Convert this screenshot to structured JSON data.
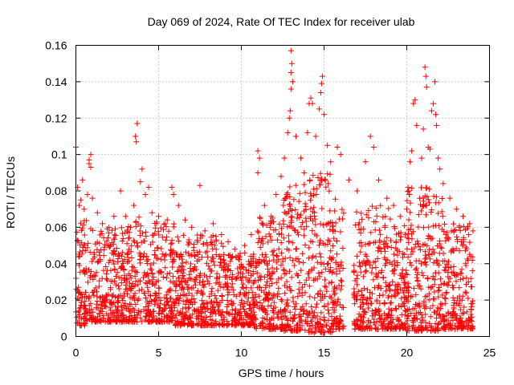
{
  "chart_data": {
    "type": "scatter",
    "title": "Day 069 of 2024, Rate Of TEC Index for receiver ulab",
    "xlabel": "GPS time / hours",
    "ylabel": "ROTI / TECUs",
    "xlim": [
      0,
      25
    ],
    "ylim": [
      0,
      0.16
    ],
    "xticks": [
      0,
      5,
      10,
      15,
      20,
      25
    ],
    "xtick_labels": [
      "0",
      "5",
      "10",
      "15",
      "20",
      "25"
    ],
    "yticks": [
      0,
      0.02,
      0.04,
      0.06,
      0.08,
      0.1,
      0.12,
      0.14,
      0.16
    ],
    "ytick_labels": [
      "0",
      "0.02",
      "0.04",
      "0.06",
      "0.08",
      "0.1",
      "0.12",
      "0.14",
      "0.16"
    ],
    "grid": true,
    "marker": "plus",
    "marker_color": "#ff0000",
    "series": [
      {
        "name": "ROTI",
        "points": [
          [
            0.0,
            0.104
          ],
          [
            0.1,
            0.082
          ],
          [
            0.2,
            0.072
          ],
          [
            0.3,
            0.075
          ],
          [
            0.4,
            0.086
          ],
          [
            0.5,
            0.07
          ],
          [
            0.8,
            0.097
          ],
          [
            0.8,
            0.095
          ],
          [
            0.9,
            0.1
          ],
          [
            0.9,
            0.093
          ],
          [
            0.7,
            0.078
          ],
          [
            1.0,
            0.076
          ],
          [
            1.3,
            0.068
          ],
          [
            1.6,
            0.062
          ],
          [
            2.0,
            0.06
          ],
          [
            2.3,
            0.066
          ],
          [
            2.7,
            0.08
          ],
          [
            3.0,
            0.066
          ],
          [
            3.3,
            0.06
          ],
          [
            3.5,
            0.072
          ],
          [
            3.7,
            0.117
          ],
          [
            3.6,
            0.11
          ],
          [
            3.65,
            0.107
          ],
          [
            3.9,
            0.085
          ],
          [
            4.0,
            0.092
          ],
          [
            4.2,
            0.078
          ],
          [
            4.4,
            0.082
          ],
          [
            4.6,
            0.068
          ],
          [
            5.0,
            0.066
          ],
          [
            5.4,
            0.062
          ],
          [
            5.8,
            0.082
          ],
          [
            5.9,
            0.078
          ],
          [
            6.2,
            0.072
          ],
          [
            6.6,
            0.064
          ],
          [
            7.0,
            0.06
          ],
          [
            7.5,
            0.083
          ],
          [
            7.8,
            0.058
          ],
          [
            8.3,
            0.062
          ],
          [
            8.8,
            0.056
          ],
          [
            9.2,
            0.052
          ],
          [
            9.6,
            0.048
          ],
          [
            10.2,
            0.05
          ],
          [
            10.6,
            0.056
          ],
          [
            11.0,
            0.102
          ],
          [
            11.1,
            0.098
          ],
          [
            11.0,
            0.09
          ],
          [
            11.4,
            0.072
          ],
          [
            11.8,
            0.066
          ],
          [
            12.1,
            0.078
          ],
          [
            12.4,
            0.088
          ],
          [
            12.6,
            0.098
          ],
          [
            12.8,
            0.112
          ],
          [
            12.9,
            0.12
          ],
          [
            12.95,
            0.124
          ],
          [
            13.0,
            0.157
          ],
          [
            13.05,
            0.15
          ],
          [
            13.0,
            0.145
          ],
          [
            13.1,
            0.14
          ],
          [
            13.0,
            0.136
          ],
          [
            13.3,
            0.11
          ],
          [
            13.6,
            0.098
          ],
          [
            13.8,
            0.09
          ],
          [
            14.0,
            0.112
          ],
          [
            14.1,
            0.128
          ],
          [
            14.2,
            0.131
          ],
          [
            14.3,
            0.128
          ],
          [
            14.5,
            0.11
          ],
          [
            14.7,
            0.125
          ],
          [
            14.8,
            0.134
          ],
          [
            14.9,
            0.143
          ],
          [
            14.85,
            0.139
          ],
          [
            15.0,
            0.122
          ],
          [
            15.2,
            0.105
          ],
          [
            15.4,
            0.096
          ],
          [
            15.8,
            0.104
          ],
          [
            16.0,
            0.1
          ],
          [
            16.5,
            0.086
          ],
          [
            17.0,
            0.08
          ],
          [
            17.5,
            0.096
          ],
          [
            17.8,
            0.11
          ],
          [
            18.0,
            0.104
          ],
          [
            18.3,
            0.086
          ],
          [
            18.8,
            0.076
          ],
          [
            19.2,
            0.072
          ],
          [
            19.6,
            0.066
          ],
          [
            20.0,
            0.07
          ],
          [
            20.2,
            0.096
          ],
          [
            20.3,
            0.102
          ],
          [
            20.4,
            0.128
          ],
          [
            20.5,
            0.13
          ],
          [
            20.6,
            0.116
          ],
          [
            20.9,
            0.098
          ],
          [
            21.0,
            0.114
          ],
          [
            21.1,
            0.148
          ],
          [
            21.15,
            0.143
          ],
          [
            21.2,
            0.137
          ],
          [
            21.3,
            0.104
          ],
          [
            21.4,
            0.103
          ],
          [
            21.5,
            0.124
          ],
          [
            21.6,
            0.128
          ],
          [
            21.7,
            0.14
          ],
          [
            21.75,
            0.122
          ],
          [
            21.8,
            0.116
          ],
          [
            21.9,
            0.098
          ],
          [
            22.0,
            0.092
          ],
          [
            22.2,
            0.084
          ],
          [
            22.6,
            0.076
          ],
          [
            23.0,
            0.07
          ],
          [
            23.4,
            0.066
          ],
          [
            23.8,
            0.062
          ],
          [
            24.0,
            0.058
          ]
        ],
        "bands": [
          {
            "x": [
              0,
              0.8
            ],
            "y": [
              0.006,
              0.064
            ]
          },
          {
            "x": [
              0.8,
              3.0
            ],
            "y": [
              0.008,
              0.06
            ]
          },
          {
            "x": [
              3.0,
              6.0
            ],
            "y": [
              0.008,
              0.066
            ]
          },
          {
            "x": [
              6.0,
              9.0
            ],
            "y": [
              0.006,
              0.056
            ]
          },
          {
            "x": [
              9.0,
              10.8
            ],
            "y": [
              0.006,
              0.046
            ]
          },
          {
            "x": [
              10.8,
              12.5
            ],
            "y": [
              0.004,
              0.066
            ]
          },
          {
            "x": [
              12.5,
              14.0
            ],
            "y": [
              0.003,
              0.084
            ]
          },
          {
            "x": [
              14.0,
              15.5
            ],
            "y": [
              0.002,
              0.09
            ]
          },
          {
            "x": [
              15.5,
              16.2
            ],
            "y": [
              0.004,
              0.076
            ]
          },
          {
            "x": [
              16.8,
              19.0
            ],
            "y": [
              0.004,
              0.072
            ]
          },
          {
            "x": [
              19.0,
              20.0
            ],
            "y": [
              0.004,
              0.062
            ]
          },
          {
            "x": [
              20.0,
              22.2
            ],
            "y": [
              0.003,
              0.082
            ]
          },
          {
            "x": [
              22.2,
              24.0
            ],
            "y": [
              0.004,
              0.062
            ]
          }
        ]
      }
    ]
  }
}
